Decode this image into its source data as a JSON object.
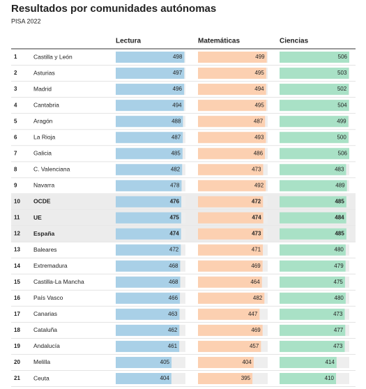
{
  "title": "Resultados por comunidades autónomas",
  "subtitle": "PISA 2022",
  "columns": [
    "Lectura",
    "Matemáticas",
    "Ciencias"
  ],
  "colors": [
    "#a9d0e7",
    "#fcd0b1",
    "#a9e1c6"
  ],
  "rows": [
    {
      "rank": 1,
      "name": "Castilla y León",
      "values": [
        498,
        499,
        506
      ]
    },
    {
      "rank": 2,
      "name": "Asturias",
      "values": [
        497,
        495,
        503
      ]
    },
    {
      "rank": 3,
      "name": "Madrid",
      "values": [
        496,
        494,
        502
      ]
    },
    {
      "rank": 4,
      "name": "Cantabria",
      "values": [
        494,
        495,
        504
      ]
    },
    {
      "rank": 5,
      "name": "Aragón",
      "values": [
        488,
        487,
        499
      ]
    },
    {
      "rank": 6,
      "name": "La Rioja",
      "values": [
        487,
        493,
        500
      ]
    },
    {
      "rank": 7,
      "name": "Galicia",
      "values": [
        485,
        486,
        506
      ]
    },
    {
      "rank": 8,
      "name": "C. Valenciana",
      "values": [
        482,
        473,
        483
      ]
    },
    {
      "rank": 9,
      "name": "Navarra",
      "values": [
        478,
        492,
        489
      ]
    },
    {
      "rank": 10,
      "name": "OCDE",
      "values": [
        476,
        472,
        485
      ],
      "highlight": true
    },
    {
      "rank": 11,
      "name": "UE",
      "values": [
        475,
        474,
        484
      ],
      "highlight": true
    },
    {
      "rank": 12,
      "name": "España",
      "values": [
        474,
        473,
        485
      ],
      "highlight": true
    },
    {
      "rank": 13,
      "name": "Baleares",
      "values": [
        472,
        471,
        480
      ]
    },
    {
      "rank": 14,
      "name": "Extremadura",
      "values": [
        468,
        469,
        479
      ]
    },
    {
      "rank": 15,
      "name": "Castilla-La Mancha",
      "values": [
        468,
        464,
        475
      ]
    },
    {
      "rank": 16,
      "name": "País Vasco",
      "values": [
        466,
        482,
        480
      ]
    },
    {
      "rank": 17,
      "name": "Canarias",
      "values": [
        463,
        447,
        473
      ]
    },
    {
      "rank": 18,
      "name": "Cataluña",
      "values": [
        462,
        469,
        477
      ]
    },
    {
      "rank": 19,
      "name": "Andalucía",
      "values": [
        461,
        457,
        473
      ]
    },
    {
      "rank": 20,
      "name": "Melilla",
      "values": [
        405,
        404,
        414
      ]
    },
    {
      "rank": 21,
      "name": "Ceuta",
      "values": [
        404,
        395,
        410
      ]
    }
  ]
}
